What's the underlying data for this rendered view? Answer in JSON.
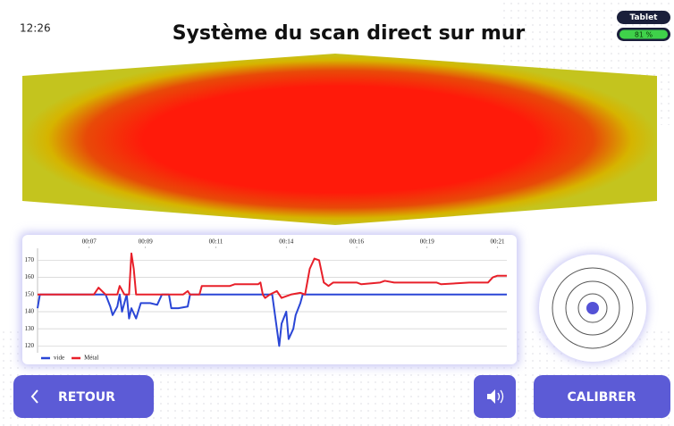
{
  "header": {
    "time": "12:26",
    "title": "Système du scan direct sur mur"
  },
  "status": {
    "device": "Tablet",
    "battery": "81 %"
  },
  "chart_data": {
    "type": "line",
    "xlim": [
      0,
      100
    ],
    "ylim": [
      116,
      177
    ],
    "grid": true,
    "legend": "bottom-left",
    "xticks": [
      {
        "value": 11,
        "label": "00:07"
      },
      {
        "value": 23,
        "label": "00:09"
      },
      {
        "value": 38,
        "label": "00:11"
      },
      {
        "value": 53,
        "label": "00:14"
      },
      {
        "value": 68,
        "label": "00:16"
      },
      {
        "value": 83,
        "label": "00:19"
      },
      {
        "value": 98,
        "label": "00:21"
      }
    ],
    "yticks": [
      120,
      130,
      140,
      150,
      160,
      170
    ],
    "series": [
      {
        "name": "vide",
        "color": "#2a46d6",
        "x": [
          0,
          0.5,
          14.5,
          15.5,
          16,
          17,
          17.5,
          18,
          19,
          19.5,
          20,
          21,
          22,
          24,
          25.5,
          26.5,
          28,
          28.5,
          30,
          32,
          32.5,
          50,
          50.5,
          51.5,
          52,
          53,
          53.5,
          54.5,
          55,
          56,
          56.5,
          100
        ],
        "values": [
          142,
          150,
          150,
          143,
          138,
          143,
          150,
          140,
          150,
          136,
          142,
          136,
          145,
          145,
          144,
          150,
          150,
          142,
          142,
          143,
          150,
          150,
          140,
          120,
          133,
          140,
          124,
          130,
          138,
          145,
          150,
          150
        ]
      },
      {
        "name": "Métal",
        "color": "#e8202a",
        "x": [
          0,
          12,
          13,
          14.5,
          17,
          17.5,
          18.5,
          19.5,
          20,
          20.5,
          21,
          31,
          32,
          32.5,
          34.5,
          35,
          41,
          42,
          47,
          47.5,
          48,
          48.5,
          49.5,
          51,
          52,
          54,
          56,
          57,
          58,
          59,
          60,
          61,
          62,
          63,
          68,
          69,
          73,
          74,
          76,
          85,
          86,
          92,
          96,
          97,
          98,
          100
        ],
        "values": [
          150,
          150,
          154,
          150,
          150,
          155,
          150,
          150,
          174,
          165,
          150,
          150,
          152,
          150,
          150,
          155,
          155,
          156,
          156,
          157,
          150,
          148,
          150,
          152,
          148,
          150,
          151,
          150,
          165,
          171,
          170,
          157,
          155,
          157,
          157,
          156,
          157,
          158,
          157,
          157,
          156,
          157,
          157,
          160,
          161,
          161
        ]
      }
    ]
  },
  "buttons": {
    "back": "RETOUR",
    "calibrate": "CALIBRER"
  }
}
